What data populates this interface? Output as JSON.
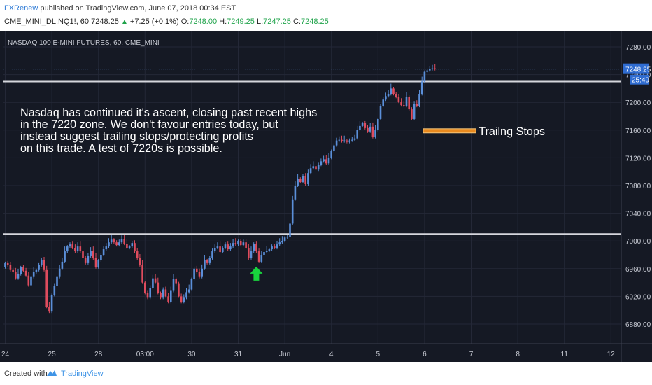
{
  "header": {
    "author": "FXRenew",
    "published_text": "published on TradingView.com, June 07, 2018 00:34 EST",
    "symbol": "CME_MINI_DL:NQ1!, 60",
    "last": "7248.25",
    "change": "+7.25 (+0.1%)",
    "o_label": "O:",
    "o": "7248.00",
    "h_label": "H:",
    "h": "7249.25",
    "l_label": "L:",
    "l": "7247.25",
    "c_label": "C:",
    "c": "7248.25"
  },
  "footer": {
    "created_with": "Created with",
    "brand": "TradingView"
  },
  "colors": {
    "background": "#151924",
    "grid": "#242837",
    "candle_up": "#5b8fd9",
    "candle_down": "#df4c5e",
    "hline": "#d5d6dc",
    "price_line": "#5b8fd9",
    "label_bg": "#2f6cd1",
    "text_box": "#e8891e",
    "arrow": "#18d43d",
    "axis_text": "#c8cbd4",
    "annotation_text": "#ffffff"
  },
  "chart_data": {
    "type": "candlestick",
    "title": "NASDAQ 100 E-MINI FUTURES, 60, CME_MINI",
    "ylim": [
      6840,
      7300
    ],
    "y_ticks": [
      6880,
      6920,
      6960,
      7000,
      7040,
      7080,
      7120,
      7160,
      7200,
      7240,
      7280
    ],
    "y_tick_labels": [
      "6880.00",
      "6920.00",
      "6960.00",
      "7000.00",
      "7040.00",
      "7080.00",
      "7120.00",
      "7160.00",
      "7200.00",
      "7240.00",
      "7280.00"
    ],
    "x_tick_labels": [
      "24",
      "25",
      "28",
      "03:00",
      "30",
      "31",
      "Jun",
      "4",
      "5",
      "6",
      "7",
      "8",
      "11",
      "12"
    ],
    "x_tick_index": [
      0,
      18,
      36,
      54,
      72,
      90,
      108,
      126,
      144,
      162,
      180,
      198,
      216,
      234
    ],
    "last_price_label": "7248.25",
    "countdown_label": "25:49",
    "horizontal_lines": [
      7230,
      7010
    ],
    "series": [
      {
        "closes": [
          6968,
          6965,
          6958,
          6955,
          6946,
          6952,
          6962,
          6957,
          6950,
          6936,
          6948,
          6955,
          6958,
          6965,
          6972,
          6958,
          6905,
          6898,
          6922,
          6935,
          6948,
          6960,
          6970,
          6985,
          6992,
          6995,
          6990,
          6985,
          6992,
          6985,
          6975,
          6968,
          6978,
          6986,
          6975,
          6962,
          6972,
          6980,
          6988,
          6992,
          6998,
          7002,
          6998,
          6994,
          6998,
          7003,
          6996,
          6990,
          6992,
          6997,
          6985,
          6975,
          6965,
          6940,
          6925,
          6918,
          6932,
          6946,
          6940,
          6925,
          6918,
          6930,
          6920,
          6912,
          6928,
          6945,
          6938,
          6920,
          6912,
          6918,
          6926,
          6930,
          6945,
          6960,
          6955,
          6948,
          6960,
          6972,
          6968,
          6975,
          6985,
          6990,
          6992,
          6984,
          6990,
          6995,
          6988,
          6992,
          6997,
          6995,
          7000,
          6994,
          6998,
          6990,
          6975,
          6985,
          6996,
          6985,
          6970,
          6980,
          6984,
          6986,
          6988,
          6992,
          6990,
          6995,
          6998,
          7000,
          7005,
          7006,
          7025,
          7060,
          7080,
          7090,
          7085,
          7094,
          7082,
          7098,
          7105,
          7108,
          7103,
          7110,
          7115,
          7118,
          7112,
          7120,
          7130,
          7138,
          7145,
          7146,
          7144,
          7145,
          7143,
          7145,
          7146,
          7148,
          7160,
          7166,
          7170,
          7163,
          7158,
          7165,
          7150,
          7160,
          7176,
          7195,
          7204,
          7209,
          7212,
          7220,
          7212,
          7208,
          7201,
          7196,
          7195,
          7208,
          7190,
          7176,
          7198,
          7195,
          7212,
          7230,
          7244,
          7246,
          7248,
          7249,
          7248
        ]
      }
    ],
    "annotations": [
      {
        "type": "text",
        "lines": [
          "Nasdaq has continued it's ascent, closing past recent highs",
          "in the 7220 zone. We don't favour entries today, but",
          "instead suggest trailing stops/protecting profits",
          "on this trade. A test of 7220s is possible."
        ]
      },
      {
        "type": "box",
        "label": "Trailng Stops",
        "x_range": [
          162,
          181
        ],
        "y_range": [
          7156,
          7162
        ]
      },
      {
        "type": "arrow",
        "direction": "up",
        "x": 97,
        "y": 6963
      }
    ]
  }
}
